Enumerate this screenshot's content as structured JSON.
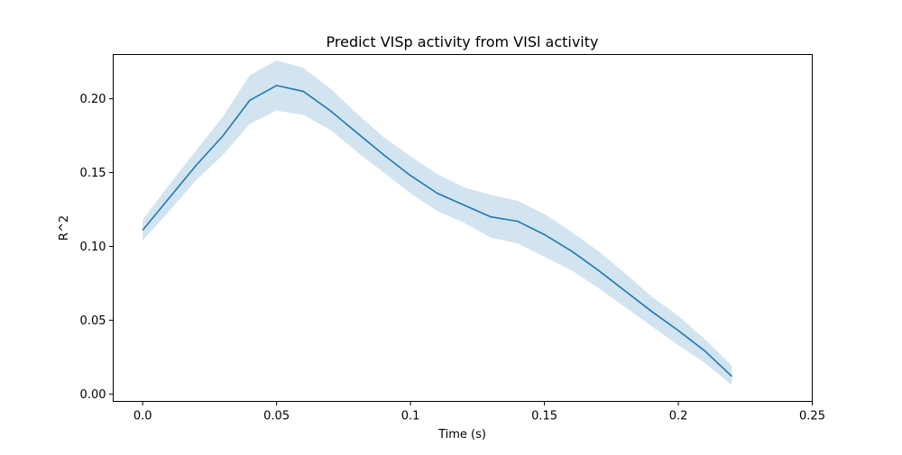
{
  "chart_data": {
    "type": "line",
    "title": "Predict VISp activity from VISl activity",
    "xlabel": "Time (s)",
    "ylabel": "R^2",
    "xlim": [
      -0.011,
      0.25
    ],
    "ylim": [
      -0.005,
      0.23
    ],
    "x_ticks": [
      0.0,
      0.05,
      0.1,
      0.15,
      0.2,
      0.25
    ],
    "x_tick_labels": [
      "0.0",
      "0.05",
      "0.1",
      "0.15",
      "0.2",
      "0.25"
    ],
    "y_ticks": [
      0.0,
      0.05,
      0.1,
      0.15,
      0.2
    ],
    "y_tick_labels": [
      "0.00",
      "0.05",
      "0.10",
      "0.15",
      "0.20"
    ],
    "grid": false,
    "legend": false,
    "line_color": "#1f77b4",
    "band_color": "#1f77b4",
    "band_opacity": 0.2,
    "series": [
      {
        "x": [
          0.0,
          0.01,
          0.02,
          0.03,
          0.04,
          0.05,
          0.06,
          0.07,
          0.08,
          0.09,
          0.1,
          0.11,
          0.12,
          0.13,
          0.14,
          0.15,
          0.16,
          0.17,
          0.18,
          0.19,
          0.2,
          0.21,
          0.22
        ],
        "y": [
          0.111,
          0.133,
          0.155,
          0.175,
          0.199,
          0.209,
          0.205,
          0.192,
          0.177,
          0.162,
          0.148,
          0.136,
          0.128,
          0.12,
          0.117,
          0.108,
          0.097,
          0.084,
          0.07,
          0.056,
          0.043,
          0.029,
          0.012
        ],
        "lower": [
          0.104,
          0.124,
          0.145,
          0.162,
          0.183,
          0.192,
          0.189,
          0.179,
          0.164,
          0.15,
          0.136,
          0.124,
          0.116,
          0.106,
          0.102,
          0.093,
          0.084,
          0.072,
          0.059,
          0.046,
          0.033,
          0.021,
          0.006
        ],
        "upper": [
          0.118,
          0.142,
          0.165,
          0.188,
          0.216,
          0.226,
          0.221,
          0.207,
          0.19,
          0.174,
          0.161,
          0.149,
          0.14,
          0.135,
          0.131,
          0.122,
          0.11,
          0.097,
          0.082,
          0.066,
          0.053,
          0.037,
          0.019
        ]
      }
    ]
  }
}
